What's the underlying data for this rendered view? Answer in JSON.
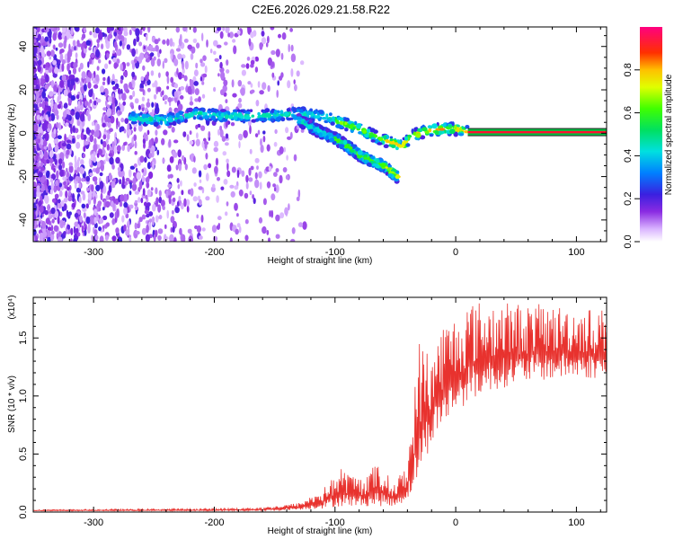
{
  "title": "C2E6.2026.029.21.58.R22",
  "chart_data": [
    {
      "type": "heatmap",
      "xlabel": "Height of straight line (km)",
      "ylabel": "Frequency (Hz)",
      "xlim": [
        -350,
        125
      ],
      "ylim": [
        -50,
        49
      ],
      "x_ticks": [
        -300,
        -200,
        -100,
        0,
        100
      ],
      "x_tick_labels": [
        "-300",
        "-200",
        "-100",
        "0",
        "100"
      ],
      "y_ticks": [
        -40,
        -20,
        0,
        20,
        40
      ],
      "y_tick_labels": [
        "-40",
        "-20",
        "0",
        "20",
        "40"
      ],
      "colorbar": {
        "label": "Normalized spectral amplitude",
        "range": [
          0,
          1
        ],
        "ticks": [
          0.0,
          0.2,
          0.4,
          0.6,
          0.8
        ],
        "tick_labels": [
          "0.0",
          "0.2",
          "0.4",
          "0.6",
          "0.8"
        ],
        "colormap": "rainbow (white-violet-blue-cyan-green-yellow-red-magenta)"
      },
      "ridge": [
        {
          "x": -270,
          "y": 7
        },
        {
          "x": -240,
          "y": 6
        },
        {
          "x": -215,
          "y": 9
        },
        {
          "x": -190,
          "y": 8
        },
        {
          "x": -160,
          "y": 8
        },
        {
          "x": -130,
          "y": 9
        },
        {
          "x": -110,
          "y": 8
        },
        {
          "x": -95,
          "y": 5
        },
        {
          "x": -80,
          "y": 2
        },
        {
          "x": -65,
          "y": -2
        },
        {
          "x": -55,
          "y": -4
        },
        {
          "x": -45,
          "y": -6
        },
        {
          "x": -35,
          "y": -1
        },
        {
          "x": -25,
          "y": 1
        },
        {
          "x": -10,
          "y": 2
        },
        {
          "x": 0,
          "y": 2
        },
        {
          "x": 10,
          "y": 0.5
        }
      ],
      "branch": [
        {
          "x": -130,
          "y": 6
        },
        {
          "x": -110,
          "y": 0
        },
        {
          "x": -95,
          "y": -4
        },
        {
          "x": -80,
          "y": -10
        },
        {
          "x": -60,
          "y": -15
        },
        {
          "x": -48,
          "y": -20
        }
      ],
      "constant_line": {
        "y": 0.5,
        "x_from": 10,
        "x_to": 125
      }
    },
    {
      "type": "line",
      "xlabel": "Height of straight line (km)",
      "ylabel": "SNR (10 * v/v)",
      "multiplier": "(x10⁴)",
      "xlim": [
        -350,
        125
      ],
      "ylim": [
        0,
        1.85
      ],
      "x_ticks": [
        -300,
        -200,
        -100,
        0,
        100
      ],
      "x_tick_labels": [
        "-300",
        "-200",
        "-100",
        "0",
        "100"
      ],
      "y_ticks": [
        0.0,
        0.5,
        1.0,
        1.5
      ],
      "y_tick_labels": [
        "0.0",
        "0.5",
        "1.0",
        "1.5"
      ],
      "line_color": "#e8322e",
      "envelope": [
        {
          "x": -350,
          "base": 0.01,
          "top": 0.02
        },
        {
          "x": -200,
          "base": 0.01,
          "top": 0.03
        },
        {
          "x": -160,
          "base": 0.01,
          "top": 0.04
        },
        {
          "x": -130,
          "base": 0.02,
          "top": 0.08
        },
        {
          "x": -110,
          "base": 0.03,
          "top": 0.2
        },
        {
          "x": -95,
          "base": 0.05,
          "top": 0.38
        },
        {
          "x": -80,
          "base": 0.05,
          "top": 0.3
        },
        {
          "x": -65,
          "base": 0.05,
          "top": 0.42
        },
        {
          "x": -50,
          "base": 0.05,
          "top": 0.25
        },
        {
          "x": -40,
          "base": 0.1,
          "top": 0.45
        },
        {
          "x": -30,
          "base": 0.3,
          "top": 1.5
        },
        {
          "x": -20,
          "base": 0.6,
          "top": 1.4
        },
        {
          "x": -10,
          "base": 0.75,
          "top": 1.65
        },
        {
          "x": 0,
          "base": 0.85,
          "top": 1.7
        },
        {
          "x": 10,
          "base": 0.95,
          "top": 1.82
        },
        {
          "x": 30,
          "base": 1.05,
          "top": 1.82
        },
        {
          "x": 60,
          "base": 1.12,
          "top": 1.8
        },
        {
          "x": 90,
          "base": 1.15,
          "top": 1.78
        },
        {
          "x": 125,
          "base": 1.15,
          "top": 1.75
        }
      ]
    }
  ]
}
